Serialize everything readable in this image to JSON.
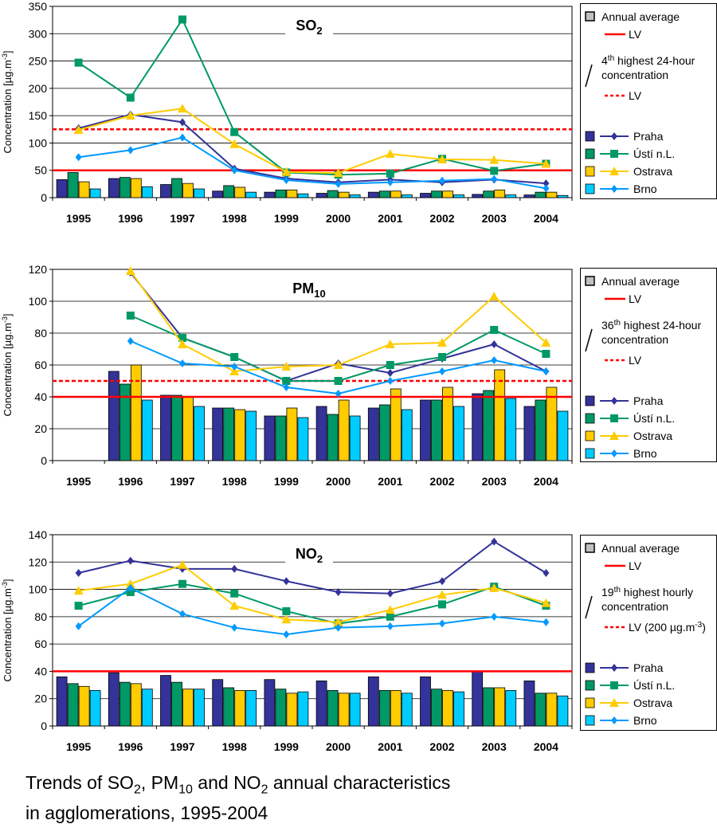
{
  "city_colors": {
    "Praha": "#333399",
    "Usti": "#009966",
    "Ostrava": "#ffcc00",
    "Brno": "#00ccff"
  },
  "line_colors": {
    "Praha": "#333399",
    "Usti": "#009966",
    "Ostrava": "#ffcc00",
    "Brno": "#0099ff"
  },
  "lv_color": "#ff0000",
  "chart_data": [
    {
      "type": "bar",
      "title": "SO",
      "title_sub": "2",
      "ylabel": "Concentration [µg.m",
      "ylabel_sup": "-3",
      "ylabel_end": "]",
      "ylim": [
        0,
        350
      ],
      "yticks": [
        0,
        50,
        100,
        150,
        200,
        250,
        300,
        350
      ],
      "categories": [
        "1995",
        "1996",
        "1997",
        "1998",
        "1999",
        "2000",
        "2001",
        "2002",
        "2003",
        "2004"
      ],
      "lv_annual": 50,
      "lv_24h": 125,
      "bars": [
        {
          "name": "Praha",
          "key": "Praha",
          "values": [
            33,
            35,
            24,
            12,
            10,
            8,
            10,
            8,
            6,
            5
          ]
        },
        {
          "name": "Ústí n.L.",
          "key": "Usti",
          "values": [
            46,
            37,
            35,
            22,
            14,
            13,
            12,
            12,
            12,
            10
          ]
        },
        {
          "name": "Ostrava",
          "key": "Ostrava",
          "values": [
            29,
            35,
            26,
            19,
            14,
            10,
            12,
            12,
            14,
            10
          ]
        },
        {
          "name": "Brno",
          "key": "Brno",
          "values": [
            16,
            20,
            16,
            10,
            7,
            5,
            5,
            5,
            5,
            4
          ]
        }
      ],
      "lines": [
        {
          "name": "Praha",
          "key": "Praha",
          "marker": "diamond",
          "values": [
            127,
            152,
            138,
            53,
            35,
            28,
            33,
            28,
            33,
            26
          ]
        },
        {
          "name": "Ústí n.L.",
          "key": "Usti",
          "marker": "square",
          "values": [
            247,
            183,
            326,
            120,
            46,
            42,
            44,
            71,
            49,
            62
          ]
        },
        {
          "name": "Ostrava",
          "key": "Ostrava",
          "marker": "triangle",
          "values": [
            124,
            150,
            163,
            98,
            47,
            45,
            80,
            70,
            69,
            62
          ]
        },
        {
          "name": "Brno",
          "key": "Brno",
          "marker": "diamond",
          "values": [
            74,
            87,
            110,
            50,
            32,
            25,
            28,
            31,
            34,
            17
          ]
        }
      ],
      "legend": {
        "annual": "Annual average",
        "lv": "LV",
        "pct_pre": "4",
        "pct_sup": "th",
        "pct_rest": " highest 24-hour",
        "pct_line2": "concentration",
        "lv2": "LV"
      }
    },
    {
      "type": "bar",
      "title": "PM",
      "title_sub": "10",
      "ylabel": "Concentration [µg.m",
      "ylabel_sup": "-3",
      "ylabel_end": "]",
      "ylim": [
        0,
        120
      ],
      "yticks": [
        0,
        20,
        40,
        60,
        80,
        100,
        120
      ],
      "categories": [
        "1995",
        "1996",
        "1997",
        "1998",
        "1999",
        "2000",
        "2001",
        "2002",
        "2003",
        "2004"
      ],
      "lv_annual": 40,
      "lv_24h": 50,
      "bars": [
        {
          "name": "Praha",
          "key": "Praha",
          "values": [
            null,
            56,
            41,
            33,
            28,
            34,
            33,
            38,
            42,
            34
          ]
        },
        {
          "name": "Ústí n.L.",
          "key": "Usti",
          "values": [
            null,
            48,
            41,
            33,
            28,
            29,
            35,
            38,
            44,
            38
          ]
        },
        {
          "name": "Ostrava",
          "key": "Ostrava",
          "values": [
            null,
            60,
            40,
            32,
            33,
            38,
            45,
            46,
            57,
            46
          ]
        },
        {
          "name": "Brno",
          "key": "Brno",
          "values": [
            null,
            38,
            34,
            31,
            27,
            28,
            32,
            34,
            39,
            31
          ]
        }
      ],
      "lines": [
        {
          "name": "Praha",
          "key": "Praha",
          "marker": "diamond",
          "values": [
            null,
            118,
            77,
            65,
            50,
            61,
            55,
            64,
            73,
            56
          ]
        },
        {
          "name": "Ústí n.L.",
          "key": "Usti",
          "marker": "square",
          "values": [
            null,
            91,
            77,
            65,
            50,
            50,
            60,
            65,
            82,
            67
          ]
        },
        {
          "name": "Ostrava",
          "key": "Ostrava",
          "marker": "triangle",
          "values": [
            null,
            119,
            73,
            56,
            59,
            60,
            73,
            74,
            103,
            74
          ]
        },
        {
          "name": "Brno",
          "key": "Brno",
          "marker": "diamond",
          "values": [
            null,
            75,
            61,
            59,
            46,
            42,
            50,
            56,
            63,
            56
          ]
        }
      ],
      "legend": {
        "annual": "Annual average",
        "lv": "LV",
        "pct_pre": "36",
        "pct_sup": "th",
        "pct_rest": " highest 24-hour",
        "pct_line2": "concentration",
        "lv2": "LV"
      }
    },
    {
      "type": "bar",
      "title": "NO",
      "title_sub": "2",
      "ylabel": "Concentration [µg.m",
      "ylabel_sup": "-3",
      "ylabel_end": "]",
      "ylim": [
        0,
        140
      ],
      "yticks": [
        0,
        20,
        40,
        60,
        80,
        100,
        120,
        140
      ],
      "categories": [
        "1995",
        "1996",
        "1997",
        "1998",
        "1999",
        "2000",
        "2001",
        "2002",
        "2003",
        "2004"
      ],
      "lv_annual": 40,
      "lv_24h": null,
      "bars": [
        {
          "name": "Praha",
          "key": "Praha",
          "values": [
            36,
            39,
            37,
            34,
            34,
            33,
            36,
            36,
            40,
            33
          ]
        },
        {
          "name": "Ústí n.L.",
          "key": "Usti",
          "values": [
            31,
            32,
            32,
            28,
            27,
            26,
            26,
            27,
            28,
            24
          ]
        },
        {
          "name": "Ostrava",
          "key": "Ostrava",
          "values": [
            29,
            31,
            27,
            26,
            24,
            24,
            26,
            26,
            28,
            24
          ]
        },
        {
          "name": "Brno",
          "key": "Brno",
          "values": [
            26,
            27,
            27,
            26,
            25,
            24,
            24,
            25,
            26,
            22
          ]
        }
      ],
      "lines": [
        {
          "name": "Praha",
          "key": "Praha",
          "marker": "diamond",
          "values": [
            112,
            121,
            115,
            115,
            106,
            98,
            97,
            106,
            135,
            112
          ]
        },
        {
          "name": "Ústí n.L.",
          "key": "Usti",
          "marker": "square",
          "values": [
            88,
            98,
            104,
            97,
            84,
            75,
            80,
            89,
            102,
            88
          ]
        },
        {
          "name": "Ostrava",
          "key": "Ostrava",
          "marker": "triangle",
          "values": [
            99,
            104,
            118,
            88,
            78,
            76,
            85,
            96,
            101,
            90
          ]
        },
        {
          "name": "Brno",
          "key": "Brno",
          "marker": "diamond",
          "values": [
            73,
            101,
            82,
            72,
            67,
            72,
            73,
            75,
            80,
            76
          ]
        }
      ],
      "legend": {
        "annual": "Annual average",
        "lv": "LV",
        "pct_pre": "19",
        "pct_sup": "th",
        "pct_rest": " highest hourly",
        "pct_line2": "concentration",
        "lv2": "LV (200 µg.m",
        "lv2_sup": "-3",
        "lv2_end": ")"
      }
    }
  ],
  "caption": {
    "l1_a": "Trends of SO",
    "l1_b": "2",
    "l1_c": ", PM",
    "l1_d": "10",
    "l1_e": " and NO",
    "l1_f": "2",
    "l1_g": " annual characteristics",
    "l2": "in agglomerations, 1995-2004"
  }
}
